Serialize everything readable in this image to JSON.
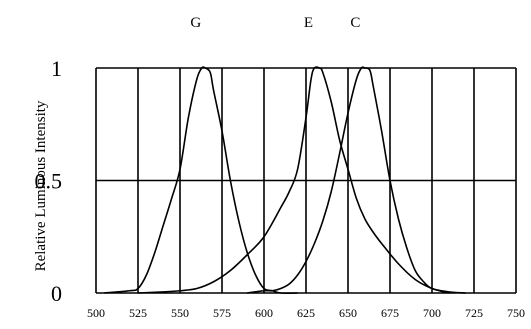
{
  "chart_data": {
    "type": "line",
    "title": "",
    "xlabel": "",
    "ylabel": "Relative Luminous Intensity",
    "xlim": [
      500,
      750
    ],
    "ylim": [
      0,
      1
    ],
    "x_ticks": [
      "500",
      "525",
      "550",
      "575",
      "600",
      "625",
      "650",
      "675",
      "700",
      "725",
      "750"
    ],
    "y_ticks": [
      {
        "value": 0,
        "label": "0"
      },
      {
        "value": 0.5,
        "label": "0.5"
      },
      {
        "value": 1,
        "label": "1"
      }
    ],
    "grid": true,
    "series": [
      {
        "name": "G",
        "x": [
          505,
          520,
          525,
          530,
          535,
          540,
          545,
          550,
          555,
          560,
          563,
          565,
          568,
          570,
          575,
          580,
          585,
          590,
          595,
          600,
          605,
          610,
          620
        ],
        "y": [
          0,
          0.01,
          0.02,
          0.08,
          0.18,
          0.3,
          0.42,
          0.55,
          0.78,
          0.95,
          1.0,
          1.0,
          0.98,
          0.9,
          0.72,
          0.5,
          0.32,
          0.18,
          0.08,
          0.02,
          0.01,
          0,
          0
        ]
      },
      {
        "name": "E",
        "x": [
          525,
          540,
          550,
          560,
          570,
          580,
          590,
          600,
          610,
          615,
          620,
          625,
          628,
          630,
          633,
          635,
          640,
          645,
          650,
          655,
          660,
          665,
          670,
          680,
          690,
          700,
          710
        ],
        "y": [
          0,
          0.005,
          0.01,
          0.02,
          0.05,
          0.1,
          0.17,
          0.25,
          0.38,
          0.45,
          0.55,
          0.78,
          0.95,
          1.0,
          1.0,
          0.98,
          0.85,
          0.68,
          0.55,
          0.42,
          0.33,
          0.27,
          0.22,
          0.13,
          0.06,
          0.02,
          0
        ]
      },
      {
        "name": "C",
        "x": [
          590,
          600,
          605,
          610,
          615,
          620,
          625,
          630,
          635,
          640,
          645,
          650,
          655,
          658,
          660,
          663,
          665,
          670,
          675,
          680,
          685,
          690,
          695,
          700,
          710,
          720
        ],
        "y": [
          0,
          0.01,
          0.01,
          0.02,
          0.04,
          0.08,
          0.14,
          0.22,
          0.32,
          0.45,
          0.62,
          0.8,
          0.95,
          1.0,
          1.0,
          0.99,
          0.92,
          0.72,
          0.5,
          0.33,
          0.2,
          0.1,
          0.05,
          0.02,
          0.005,
          0
        ]
      }
    ]
  }
}
